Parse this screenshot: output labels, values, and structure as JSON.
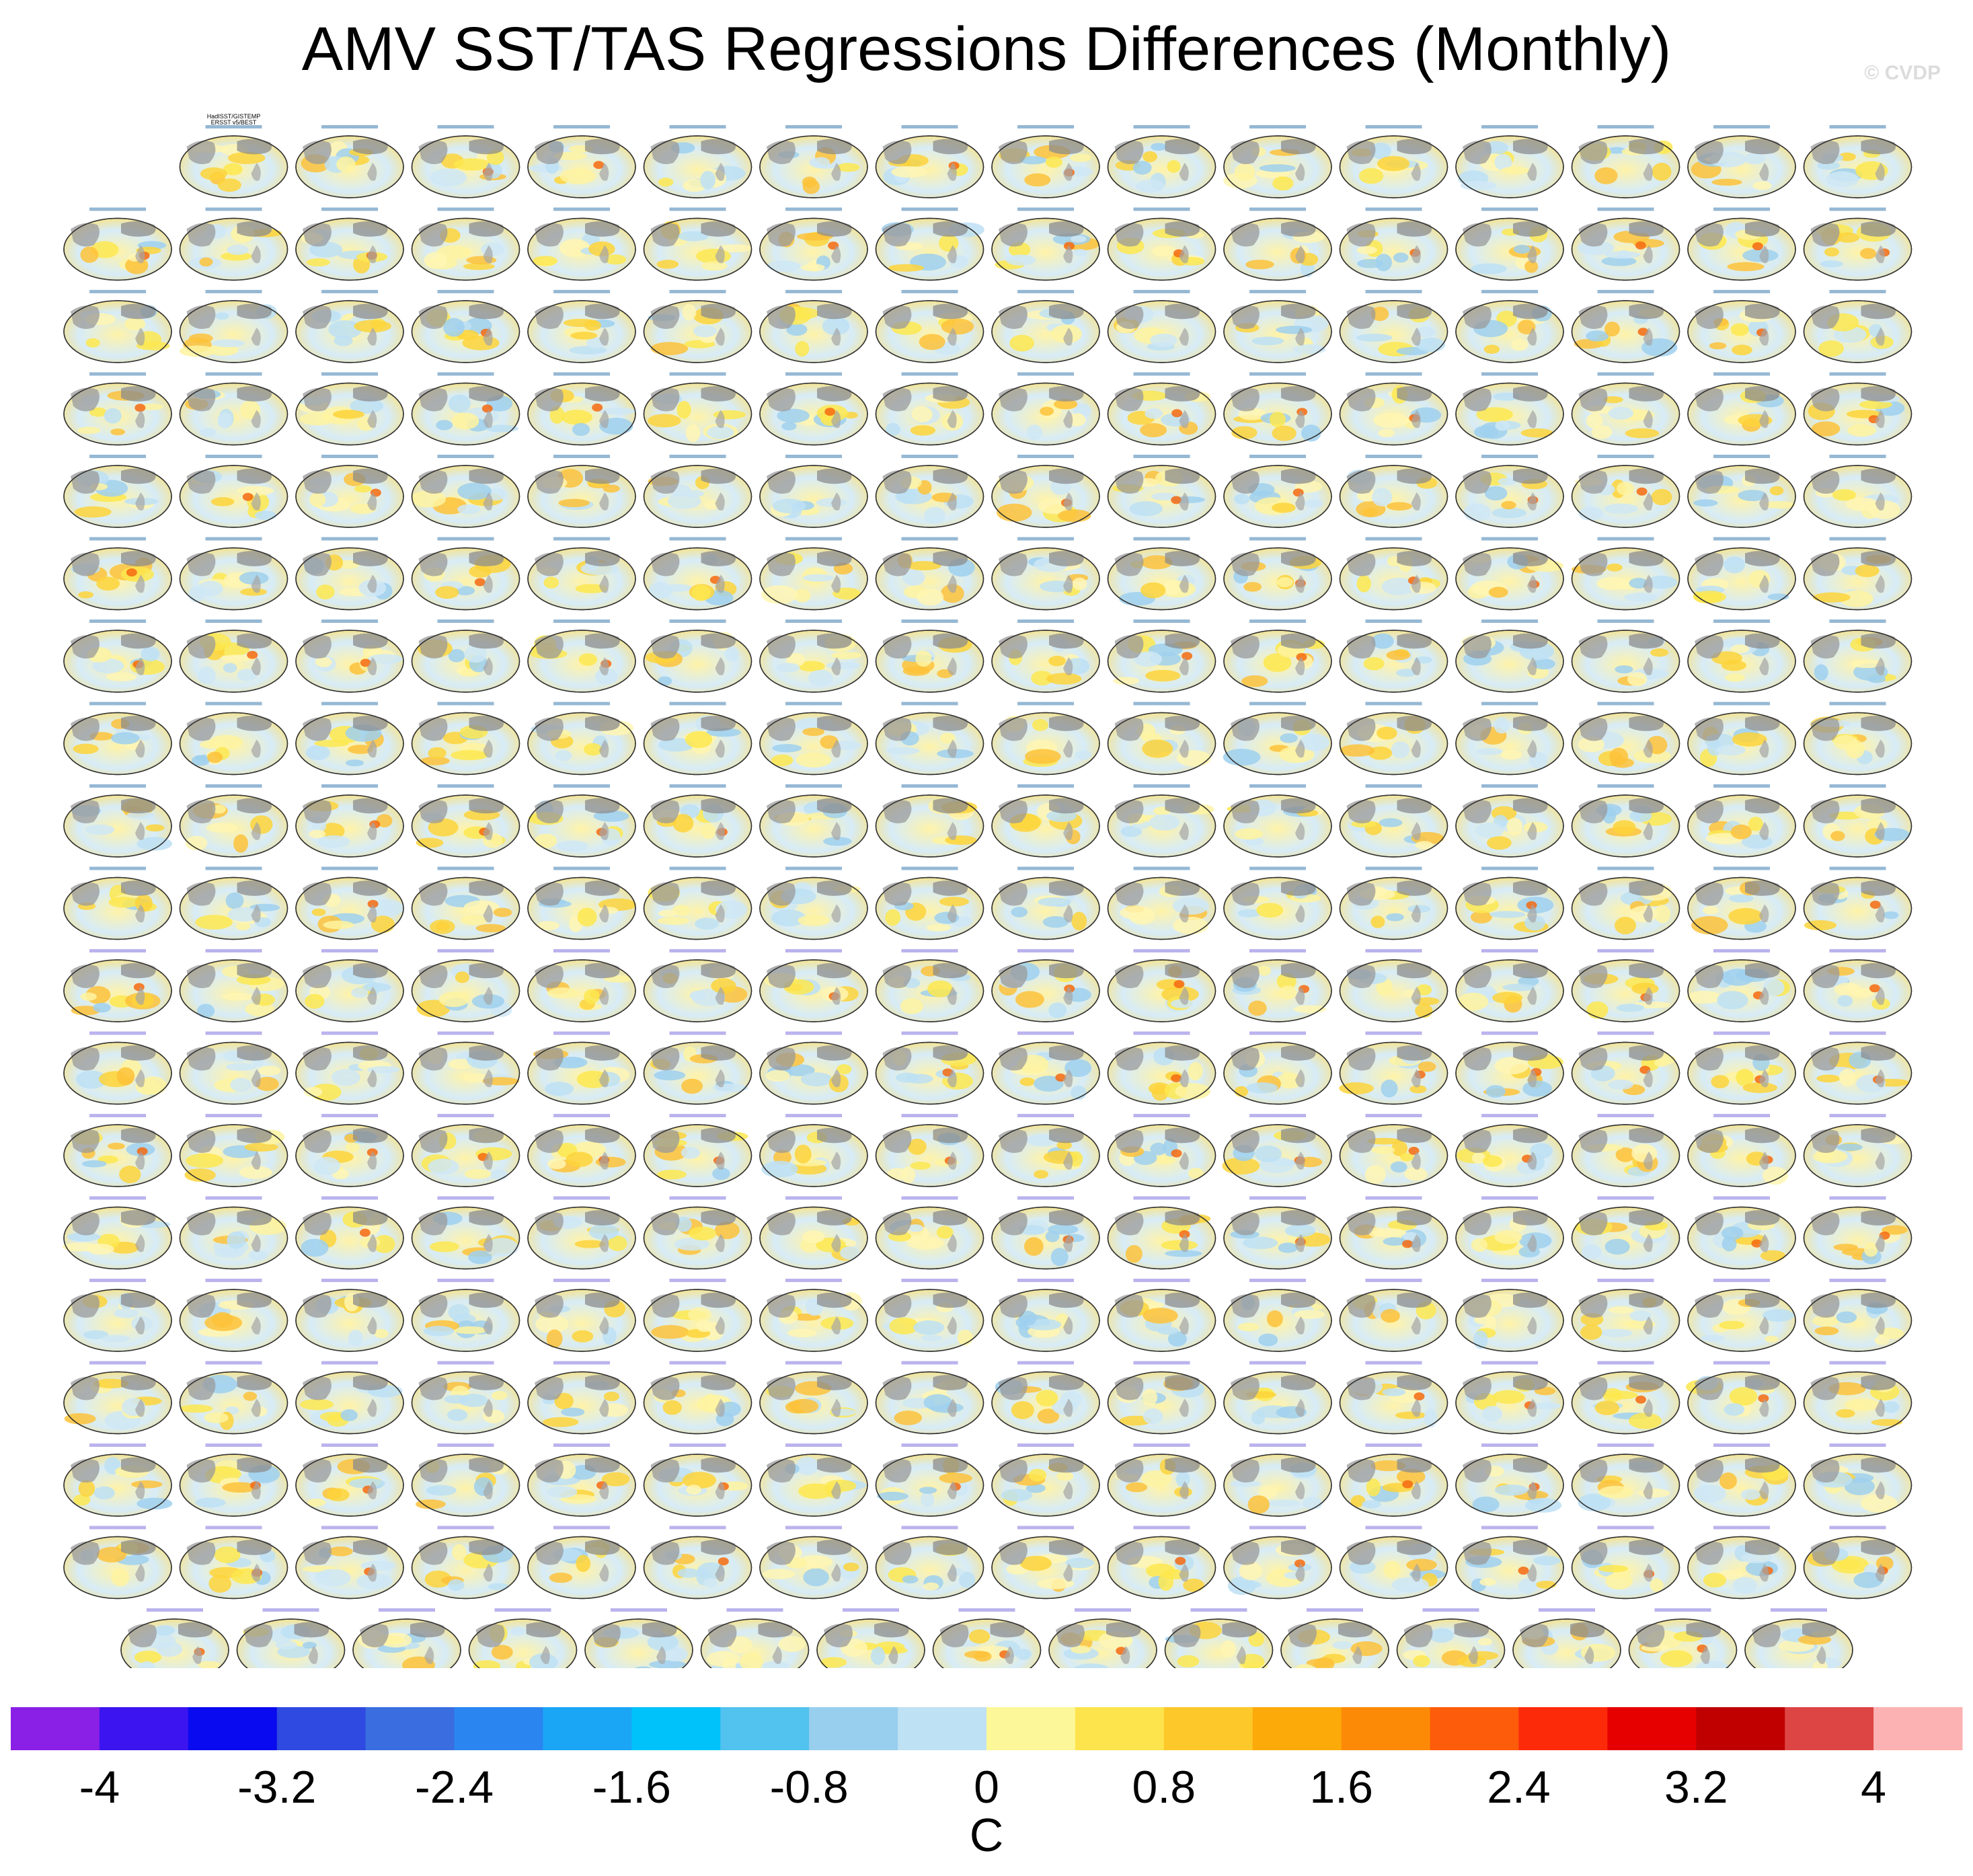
{
  "title": "AMV SST/TAS Regressions Differences (Monthly)",
  "watermark": "© CVDP",
  "chart_data": {
    "type": "heatmap",
    "description_kind": "grid of global map panels (regression difference maps)",
    "panel_grid": {
      "rows": 19,
      "cols": 16,
      "row_counts": [
        15,
        16,
        16,
        16,
        16,
        16,
        16,
        16,
        16,
        16,
        16,
        16,
        16,
        16,
        16,
        16,
        16,
        16,
        15
      ]
    },
    "first_panel_title": [
      "HadISST/GISTEMP",
      "ERSST v5/BEST"
    ],
    "colorbar": {
      "units": "C",
      "tick_labels": [
        "-4",
        "-3.2",
        "-2.4",
        "-1.6",
        "-0.8",
        "0",
        "0.8",
        "1.6",
        "2.4",
        "3.2",
        "4"
      ],
      "colors": [
        "#8a1fe6",
        "#3b14f0",
        "#0a0af0",
        "#2e4ae0",
        "#3a6ee0",
        "#2a85f0",
        "#1aa5f5",
        "#00c2fa",
        "#52c2ee",
        "#98cfee",
        "#bfe1f4",
        "#fcf798",
        "#fde34c",
        "#fdc82a",
        "#fca90a",
        "#fd8a06",
        "#fd5c0a",
        "#fd2a0a",
        "#e60000",
        "#c00000",
        "#dd4444",
        "#fcb2b2"
      ]
    }
  }
}
